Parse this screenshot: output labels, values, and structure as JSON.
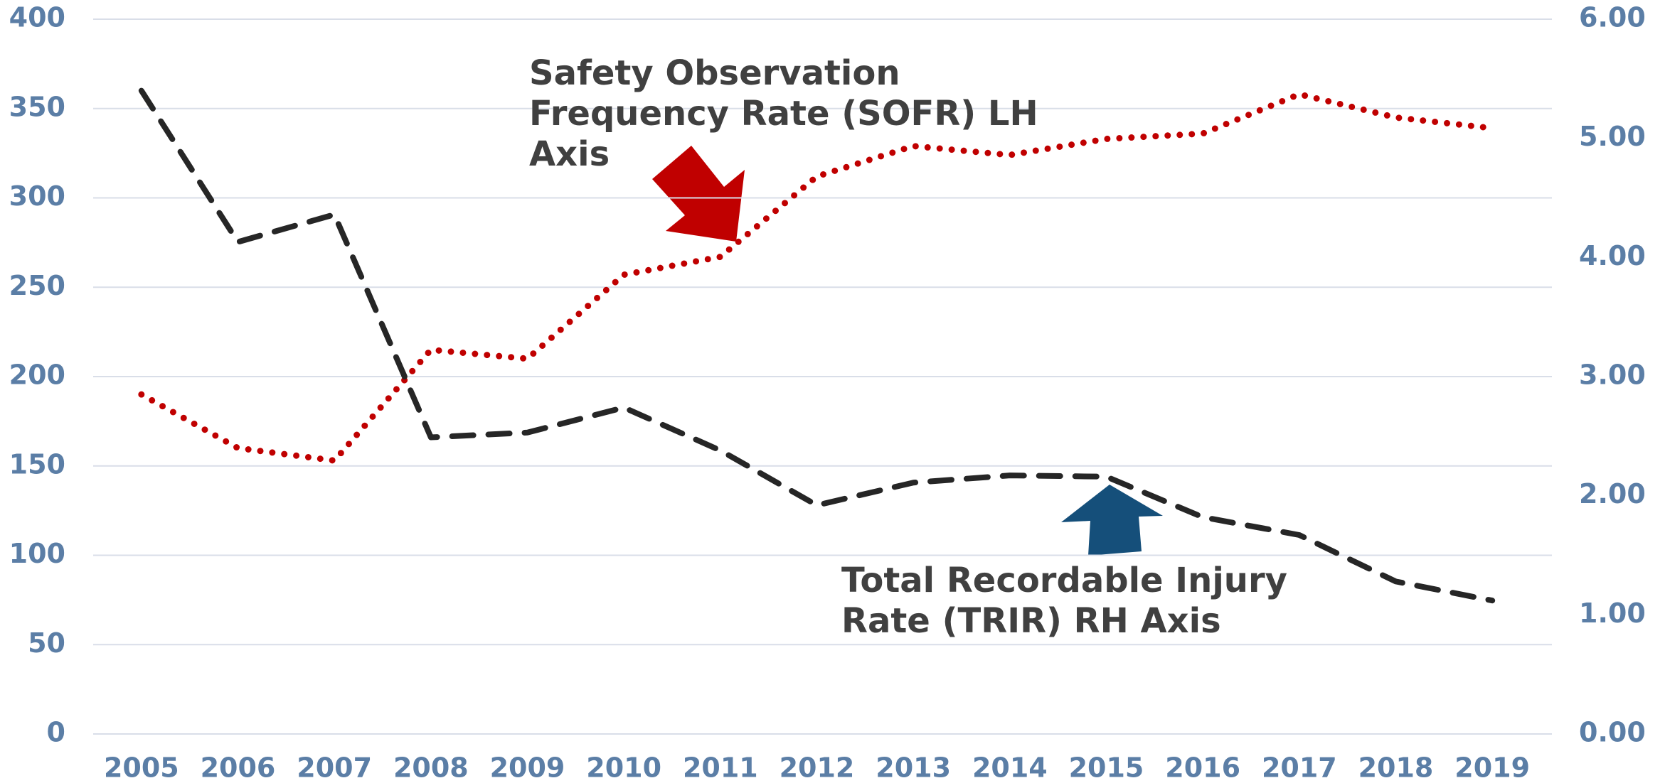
{
  "chart_data": {
    "type": "line",
    "categories": [
      "2005",
      "2006",
      "2007",
      "2008",
      "2009",
      "2010",
      "2011",
      "2012",
      "2013",
      "2014",
      "2015",
      "2016",
      "2017",
      "2018",
      "2019"
    ],
    "series": [
      {
        "color": "#c00000",
        "style": "dotted",
        "axis": "y",
        "values": [
          190,
          160,
          153,
          215,
          210,
          257,
          267,
          312,
          329,
          324,
          333,
          336,
          358,
          345,
          339
        ]
      },
      {
        "color": "#262626",
        "style": "dashed",
        "axis": "y2",
        "values": [
          5.4,
          4.13,
          4.36,
          2.49,
          2.53,
          2.74,
          2.38,
          1.92,
          2.11,
          2.17,
          2.16,
          1.82,
          1.67,
          1.28,
          1.12
        ]
      }
    ],
    "ylim": [
      0,
      400
    ],
    "yticks": [
      0,
      50,
      100,
      150,
      200,
      250,
      300,
      350,
      400
    ],
    "y2lim": [
      0,
      6
    ],
    "y2ticks": [
      {
        "value": 0,
        "label": "0.00"
      },
      {
        "value": 1,
        "label": "1.00"
      },
      {
        "value": 2,
        "label": "2.00"
      },
      {
        "value": 3,
        "label": "3.00"
      },
      {
        "value": 4,
        "label": "4.00"
      },
      {
        "value": 5,
        "label": "5.00"
      },
      {
        "value": 6,
        "label": "6.00"
      }
    ],
    "grid": true,
    "annotations": [
      {
        "lines": [
          "Safety Observation",
          "Frequency Rate (SOFR) LH",
          "Axis"
        ],
        "color": "#c00000"
      },
      {
        "lines": [
          "Total Recordable Injury",
          "Rate (TRIR) RH Axis"
        ],
        "color": "#154f7a"
      }
    ]
  }
}
